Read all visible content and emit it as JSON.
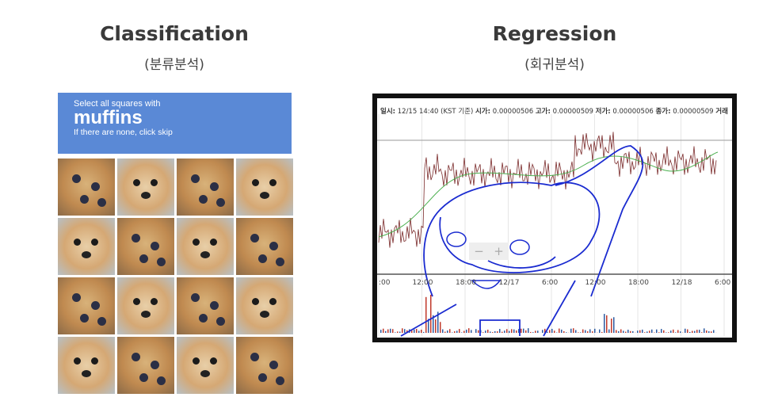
{
  "left": {
    "title": "Classification",
    "subtitle": "(분류분석)",
    "captcha": {
      "line1": "Select all squares with",
      "line2": "muffins",
      "line3": "If there are none, click skip",
      "header_color": "#5a89d6",
      "tiles": [
        "muffin",
        "dog",
        "muffin",
        "dog",
        "dog",
        "muffin",
        "dog",
        "muffin",
        "muffin",
        "dog",
        "muffin",
        "dog",
        "dog",
        "muffin",
        "dog",
        "muffin"
      ]
    }
  },
  "right": {
    "title": "Regression",
    "subtitle": "(회귀분석)",
    "chart_header": {
      "date_label": "일시:",
      "date": "12/15 14:40 (KST 기준)",
      "open_label": "시가:",
      "open": "0.00000506",
      "high_label": "고가:",
      "high": "0.00000509",
      "low_label": "저가:",
      "low": "0.00000506",
      "close_label": "종가:",
      "close": "0.00000509",
      "volume_label": "거래"
    },
    "zoom_minus": "−",
    "zoom_plus": "+",
    "x_ticks": [
      ":00",
      "12:00",
      "18:00",
      "12/17",
      "6:00",
      "12:00",
      "18:00",
      "12/18",
      "6:00"
    ]
  }
}
